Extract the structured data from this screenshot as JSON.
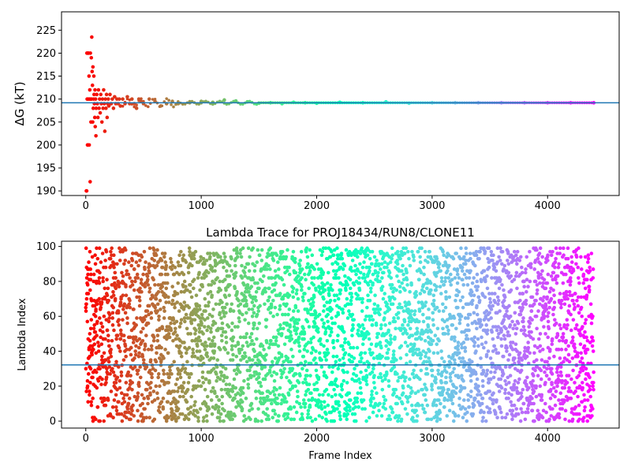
{
  "chart_data": [
    {
      "type": "scatter",
      "title": "",
      "xlabel": "",
      "ylabel": "ΔG (kT)",
      "xlim": [
        -210,
        4620
      ],
      "ylim": [
        189,
        229
      ],
      "xticks": [
        0,
        1000,
        2000,
        3000,
        4000
      ],
      "yticks": [
        190,
        195,
        200,
        205,
        210,
        215,
        220,
        225
      ],
      "reference_line": 209.2,
      "reference_color": "#1f77b4",
      "colormap": "rainbow",
      "series": [
        {
          "x": [
            5,
            8,
            10,
            12,
            15,
            18,
            20,
            22,
            25,
            28,
            30,
            32,
            35,
            38,
            40,
            42,
            45,
            48,
            50,
            52,
            55,
            58,
            60,
            62,
            65,
            68,
            70,
            72,
            75,
            78,
            80,
            82,
            85,
            88,
            90,
            95,
            100,
            105,
            110,
            115,
            120,
            125,
            130,
            135,
            140,
            145,
            150,
            155,
            160,
            165,
            170,
            175,
            180,
            185,
            190,
            195,
            200,
            210,
            220,
            230,
            240,
            250,
            260,
            270,
            280,
            290,
            300,
            320,
            340,
            360,
            380,
            400,
            420,
            440,
            460,
            480,
            500,
            550,
            600,
            650,
            700,
            750,
            800,
            900,
            1000,
            1100,
            1200,
            1300,
            1400,
            1500,
            1600,
            1700,
            1800,
            1900,
            2000,
            2200,
            2400,
            2600,
            2800,
            3000,
            3200,
            3400,
            3600,
            3800,
            4000,
            4200,
            4400
          ],
          "values": [
            190,
            190,
            220,
            210,
            200,
            220,
            200,
            210,
            220,
            215,
            200,
            210,
            212,
            192,
            220,
            210,
            205,
            219,
            210,
            223.5,
            216,
            213,
            205,
            217,
            208,
            210,
            215,
            211,
            209,
            206,
            212,
            204,
            210,
            202,
            208,
            211,
            209,
            206,
            212,
            208,
            210,
            207,
            211,
            209,
            205,
            210,
            208,
            212,
            209,
            203,
            210,
            208,
            211,
            206,
            209,
            210,
            208.5,
            211,
            209,
            210,
            208,
            210.5,
            209,
            210,
            209,
            210,
            208.5,
            210,
            209,
            210.5,
            209,
            210,
            209,
            208,
            210,
            209.5,
            209,
            210,
            209.5,
            208.5,
            209,
            209.5,
            209,
            209.2,
            209.5,
            209.3,
            209.8,
            209.6,
            209.4,
            209.1,
            209.2,
            209,
            209.3,
            209.2,
            209.1,
            209.3,
            209.2,
            209.4,
            209.1,
            209.2,
            209.2,
            209.2,
            209.2,
            209.2,
            209.2,
            209.2,
            209.2
          ]
        }
      ]
    },
    {
      "type": "scatter",
      "title": "Lambda Trace for PROJ18434/RUN8/CLONE11",
      "xlabel": "Frame Index",
      "ylabel": "Lambda Index",
      "xlim": [
        -210,
        4620
      ],
      "ylim": [
        -4,
        103
      ],
      "xticks": [
        0,
        1000,
        2000,
        3000,
        4000
      ],
      "yticks": [
        0,
        20,
        40,
        60,
        80,
        100
      ],
      "reference_line": 32.2,
      "reference_color": "#1f77b4",
      "colormap": "rainbow",
      "series": [
        {
          "x_range": [
            0,
            4400
          ],
          "y_range": [
            0,
            99
          ],
          "point_count": 4400
        }
      ]
    }
  ]
}
